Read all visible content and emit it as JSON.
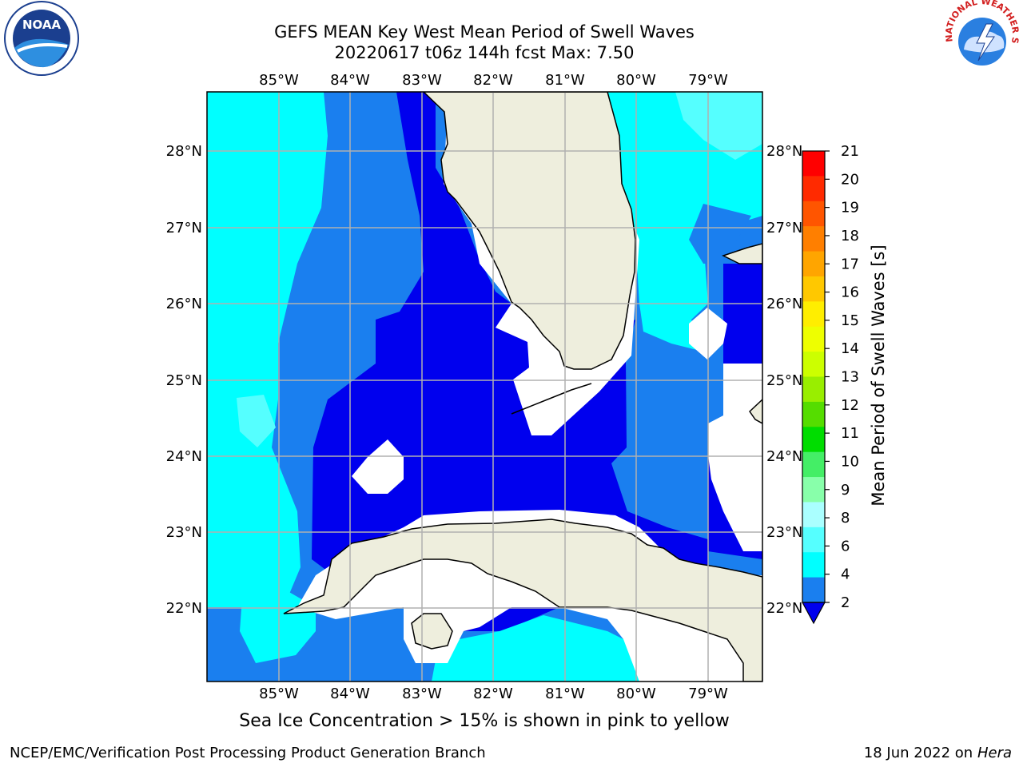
{
  "title": {
    "line1": "GEFS MEAN Key West Mean Period of Swell Waves",
    "line2": "20220617 t06z 144h fcst   Max: 7.50"
  },
  "logos": {
    "left": "NOAA",
    "right": "NATIONAL WEATHER SERVICE"
  },
  "map": {
    "lon_labels": [
      "85°W",
      "84°W",
      "83°W",
      "82°W",
      "81°W",
      "80°W",
      "79°W"
    ],
    "lat_labels": [
      "28°N",
      "27°N",
      "26°N",
      "25°N",
      "24°N",
      "23°N",
      "22°N"
    ],
    "colors": {
      "ocean_dark": "#0000ee",
      "ocean_mid": "#1a7fef",
      "ocean_cyan": "#00ffff",
      "ocean_light": "#55ffff",
      "land": "#eeeedd",
      "nodata": "#ffffff",
      "grid": "#b0b0b0"
    }
  },
  "colorbar": {
    "label": "Mean Period of Swell Waves [s]",
    "ticks": [
      "21",
      "20",
      "19",
      "18",
      "17",
      "16",
      "15",
      "14",
      "13",
      "12",
      "11",
      "10",
      "9",
      "8",
      "6",
      "4",
      "2"
    ],
    "colors": [
      "#ff0000",
      "#ff2a00",
      "#ff5500",
      "#ff7f00",
      "#ffa500",
      "#ffc800",
      "#ffee00",
      "#eeff00",
      "#ccff00",
      "#99ee00",
      "#55dd00",
      "#00dd00",
      "#44ee66",
      "#88ffaa",
      "#aaffff",
      "#55ffff",
      "#00ffff",
      "#1a7fef"
    ]
  },
  "footer": {
    "note": "Sea Ice Concentration > 15% is shown in pink to yellow",
    "credit": "NCEP/EMC/Verification Post Processing Product Generation Branch",
    "date": "18 Jun 2022 on",
    "host": "Hera"
  }
}
